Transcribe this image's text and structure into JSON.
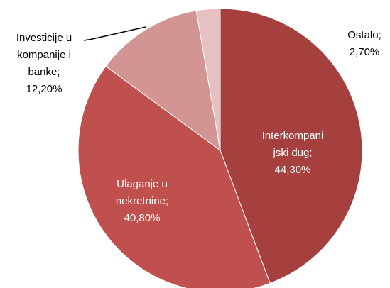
{
  "chart_data": {
    "type": "pie",
    "categories": [
      "Interkompanijski dug;",
      "Ulaganje u nekretnine;",
      "Investicije u kompanije i banke;",
      "Ostalo;"
    ],
    "values": [
      44.3,
      40.8,
      12.2,
      2.7
    ],
    "value_labels": [
      "44,30%",
      "40,80%",
      "12,20%",
      "2,70%"
    ],
    "colors": [
      "#a5403f",
      "#c0504d",
      "#d29593",
      "#e6c1c1"
    ]
  }
}
